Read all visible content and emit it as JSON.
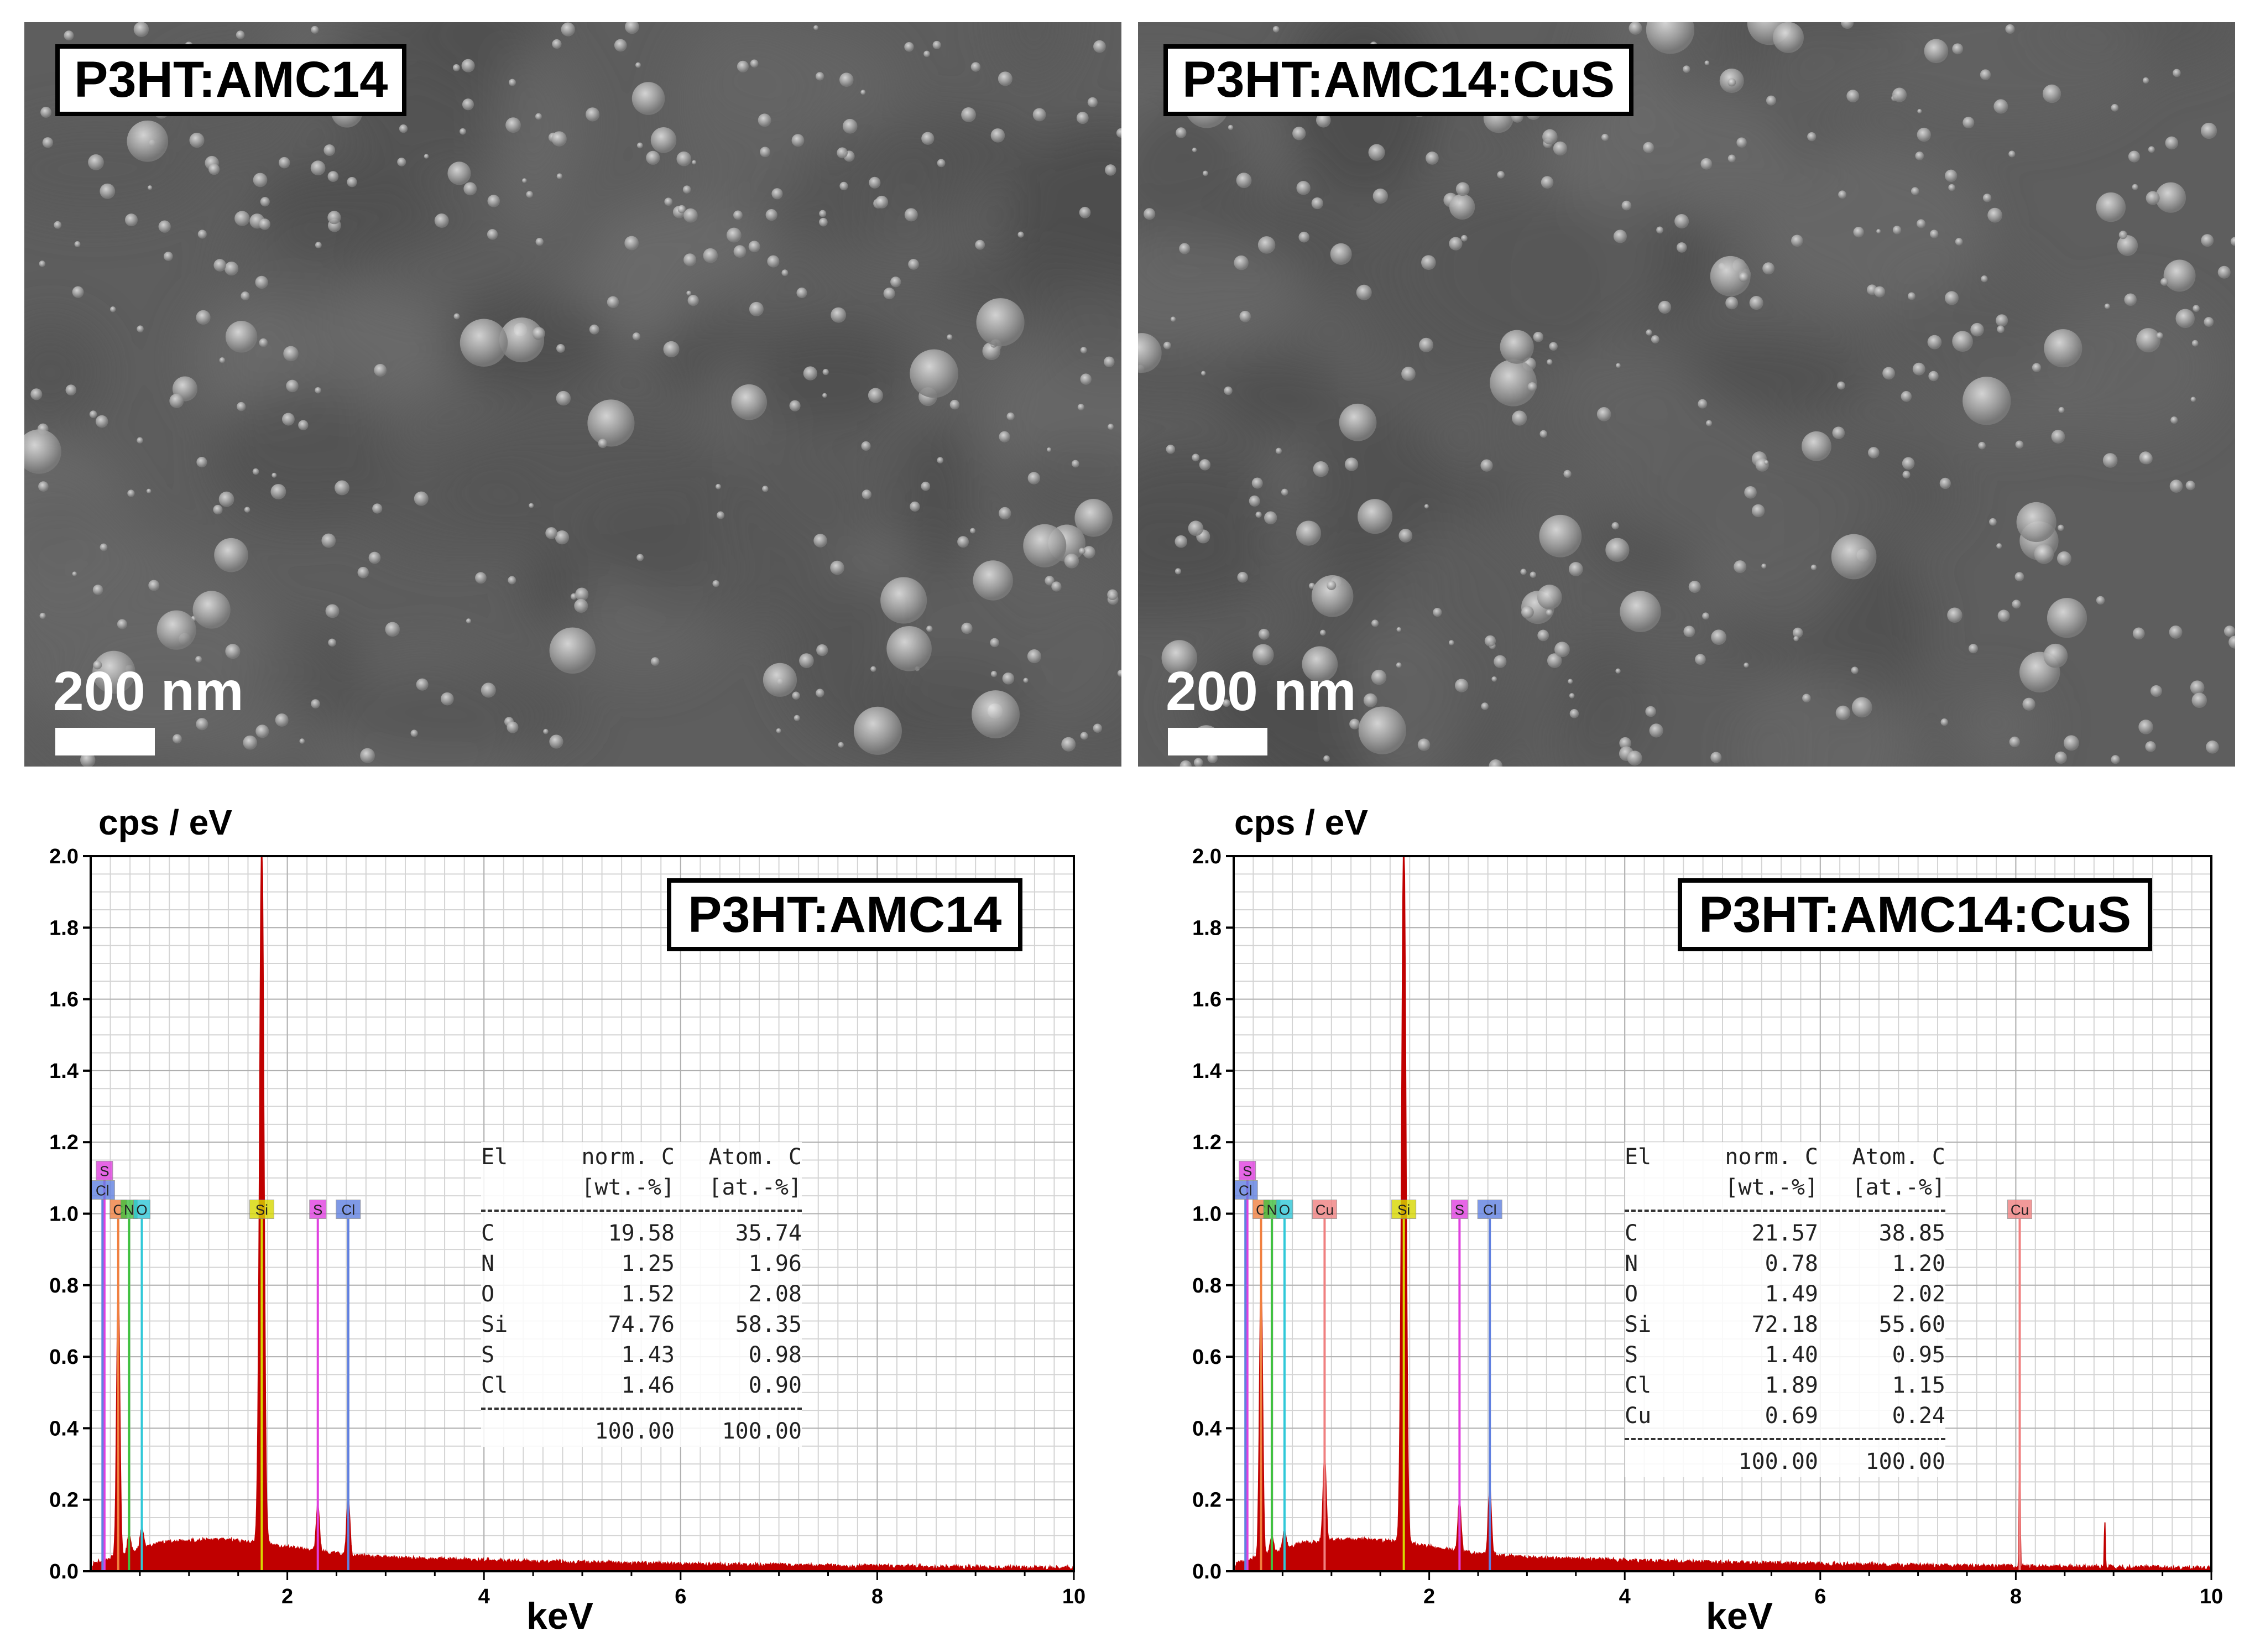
{
  "sem_panels": [
    {
      "label": "P3HT:AMC14",
      "scale_text": "200 nm"
    },
    {
      "label": "P3HT:AMC14:CuS",
      "scale_text": "200 nm"
    }
  ],
  "chart_data": [
    {
      "type": "line",
      "title": "P3HT:AMC14",
      "ylabel": "cps / eV",
      "xlabel": "keV",
      "xlim": [
        0,
        10
      ],
      "ylim": [
        0,
        2.0
      ],
      "x_ticks": [
        "2",
        "4",
        "6",
        "8",
        "10"
      ],
      "y_ticks": [
        "0.0",
        "0.2",
        "0.4",
        "0.6",
        "0.8",
        "1.0",
        "1.2",
        "1.4",
        "1.6",
        "1.8",
        "2.0"
      ],
      "grid": true,
      "series_color": "#c00000",
      "peaks": [
        {
          "element": "C",
          "kev": 0.28,
          "height": 0.76
        },
        {
          "element": "N",
          "kev": 0.39,
          "height": 0.05
        },
        {
          "element": "O",
          "kev": 0.52,
          "height": 0.06
        },
        {
          "element": "Si",
          "kev": 1.74,
          "height": 2.0
        },
        {
          "element": "S",
          "kev": 2.31,
          "height": 0.13
        },
        {
          "element": "Cl",
          "kev": 2.62,
          "height": 0.16
        }
      ],
      "element_markers": [
        {
          "element": "S",
          "kev": 0.14,
          "color": "#e040e0"
        },
        {
          "element": "Cl",
          "kev": 0.12,
          "color": "#6080e0"
        },
        {
          "element": "C",
          "kev": 0.28,
          "color": "#f08040"
        },
        {
          "element": "N",
          "kev": 0.39,
          "color": "#40c040"
        },
        {
          "element": "O",
          "kev": 0.52,
          "color": "#30c8d8"
        },
        {
          "element": "Si",
          "kev": 1.74,
          "color": "#d8d800"
        },
        {
          "element": "S",
          "kev": 2.31,
          "color": "#e040e0"
        },
        {
          "element": "Cl",
          "kev": 2.62,
          "color": "#6080e0"
        }
      ],
      "table": {
        "header1": [
          "El",
          "norm. C",
          "Atom. C"
        ],
        "header2": [
          "",
          "[wt.-%]",
          "[at.-%]"
        ],
        "rows": [
          {
            "el": "C",
            "wt": "19.58",
            "at": "35.74"
          },
          {
            "el": "N",
            "wt": "1.25",
            "at": "1.96"
          },
          {
            "el": "O",
            "wt": "1.52",
            "at": "2.08"
          },
          {
            "el": "Si",
            "wt": "74.76",
            "at": "58.35"
          },
          {
            "el": "S",
            "wt": "1.43",
            "at": "0.98"
          },
          {
            "el": "Cl",
            "wt": "1.46",
            "at": "0.90"
          }
        ],
        "total": {
          "wt": "100.00",
          "at": "100.00"
        }
      }
    },
    {
      "type": "line",
      "title": "P3HT:AMC14:CuS",
      "ylabel": "cps / eV",
      "xlabel": "keV",
      "xlim": [
        0,
        10
      ],
      "ylim": [
        0,
        2.0
      ],
      "x_ticks": [
        "2",
        "4",
        "6",
        "8",
        "10"
      ],
      "y_ticks": [
        "0.0",
        "0.2",
        "0.4",
        "0.6",
        "0.8",
        "1.0",
        "1.2",
        "1.4",
        "1.6",
        "1.8",
        "2.0"
      ],
      "grid": true,
      "series_color": "#c00000",
      "peaks": [
        {
          "element": "C",
          "kev": 0.28,
          "height": 0.78
        },
        {
          "element": "N",
          "kev": 0.39,
          "height": 0.05
        },
        {
          "element": "O",
          "kev": 0.52,
          "height": 0.05
        },
        {
          "element": "Cu",
          "kev": 0.93,
          "height": 0.24
        },
        {
          "element": "Si",
          "kev": 1.74,
          "height": 2.0
        },
        {
          "element": "S",
          "kev": 2.31,
          "height": 0.14
        },
        {
          "element": "Cl",
          "kev": 2.62,
          "height": 0.19
        },
        {
          "element": "Cu",
          "kev": 8.04,
          "height": 0.51
        },
        {
          "element": "",
          "kev": 8.91,
          "height": 0.14
        }
      ],
      "element_markers": [
        {
          "element": "S",
          "kev": 0.14,
          "color": "#e040e0"
        },
        {
          "element": "Cl",
          "kev": 0.12,
          "color": "#6080e0"
        },
        {
          "element": "C",
          "kev": 0.28,
          "color": "#f08040"
        },
        {
          "element": "N",
          "kev": 0.39,
          "color": "#40c040"
        },
        {
          "element": "O",
          "kev": 0.52,
          "color": "#30c8d8"
        },
        {
          "element": "Cu",
          "kev": 0.93,
          "color": "#f08080"
        },
        {
          "element": "Si",
          "kev": 1.74,
          "color": "#d8d800"
        },
        {
          "element": "S",
          "kev": 2.31,
          "color": "#e040e0"
        },
        {
          "element": "Cl",
          "kev": 2.62,
          "color": "#6080e0"
        },
        {
          "element": "Cu",
          "kev": 8.04,
          "color": "#f08080"
        }
      ],
      "table": {
        "header1": [
          "El",
          "norm. C",
          "Atom. C"
        ],
        "header2": [
          "",
          "[wt.-%]",
          "[at.-%]"
        ],
        "rows": [
          {
            "el": "C",
            "wt": "21.57",
            "at": "38.85"
          },
          {
            "el": "N",
            "wt": "0.78",
            "at": "1.20"
          },
          {
            "el": "O",
            "wt": "1.49",
            "at": "2.02"
          },
          {
            "el": "Si",
            "wt": "72.18",
            "at": "55.60"
          },
          {
            "el": "S",
            "wt": "1.40",
            "at": "0.95"
          },
          {
            "el": "Cl",
            "wt": "1.89",
            "at": "1.15"
          },
          {
            "el": "Cu",
            "wt": "0.69",
            "at": "0.24"
          }
        ],
        "total": {
          "wt": "100.00",
          "at": "100.00"
        }
      }
    }
  ]
}
